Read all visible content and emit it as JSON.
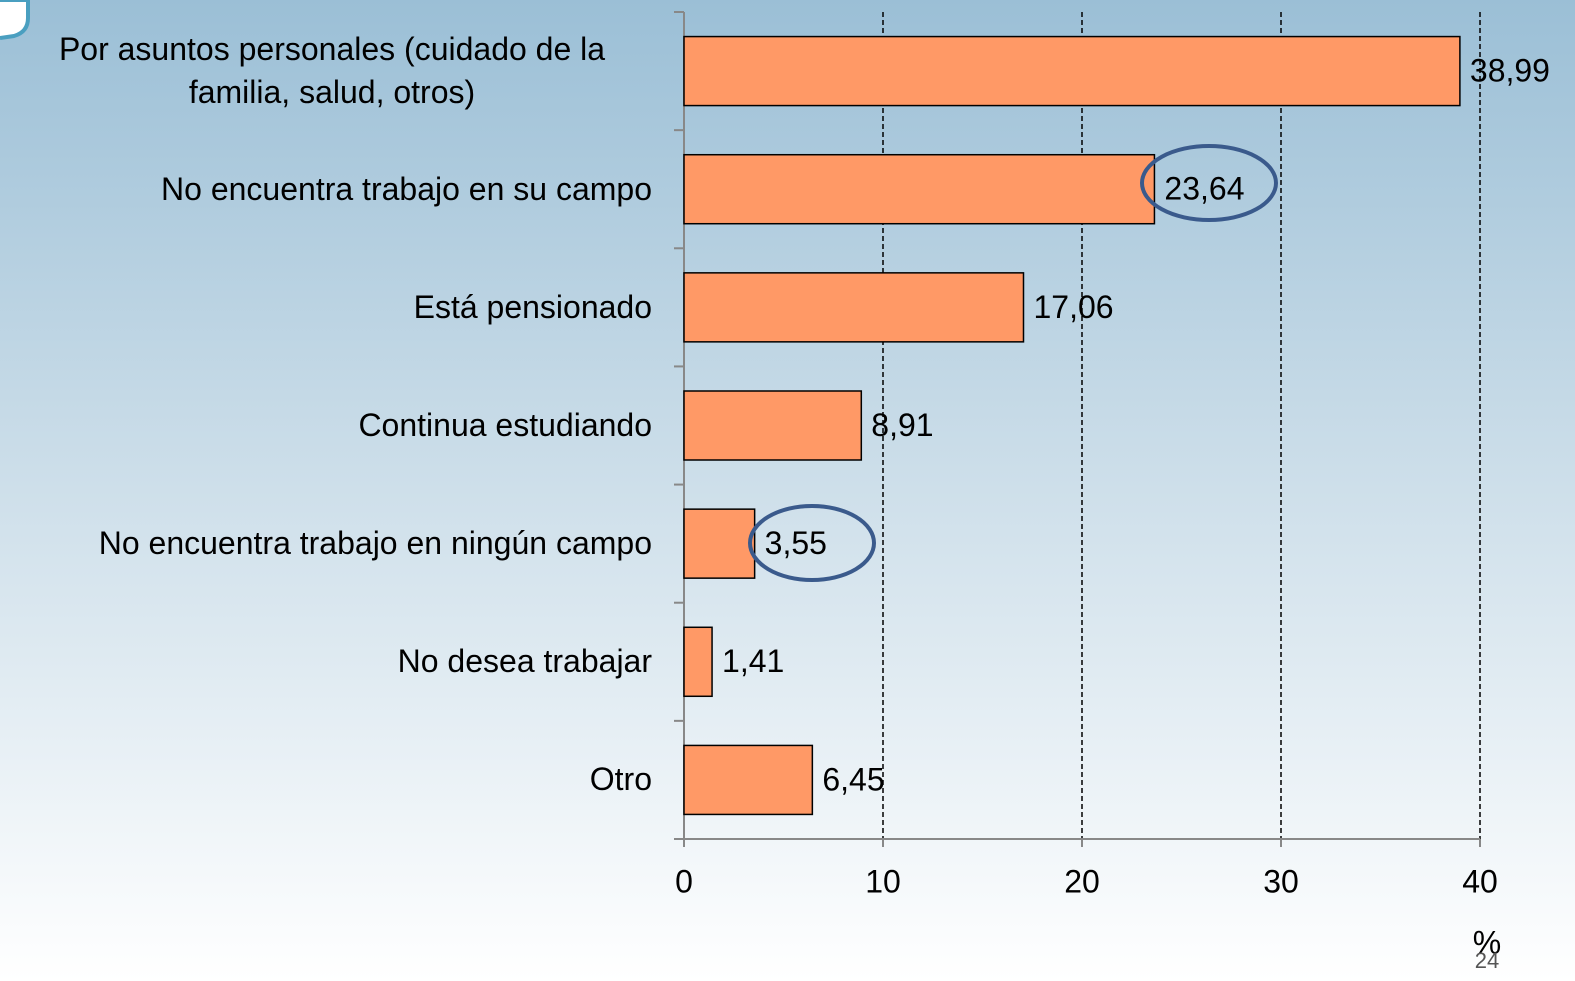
{
  "chart_data": {
    "type": "bar",
    "orientation": "horizontal",
    "categories": [
      "Por asuntos personales (cuidado de la familia, salud, otros)",
      "No encuentra trabajo en su campo",
      "Está pensionado",
      "Continua estudiando",
      "No encuentra trabajo en ningún campo",
      "No desea trabajar",
      "Otro"
    ],
    "values": [
      38.99,
      23.64,
      17.06,
      8.91,
      3.55,
      1.41,
      6.45
    ],
    "value_labels": [
      "38,99",
      "23,64",
      "17,06",
      "8,91",
      "3,55",
      "1,41",
      "6,45"
    ],
    "color": "#ff9966",
    "xlim": [
      0,
      40
    ],
    "xticks": [
      0,
      10,
      20,
      30,
      40
    ],
    "grid": true,
    "x_label": "%"
  },
  "slide_number": "24"
}
